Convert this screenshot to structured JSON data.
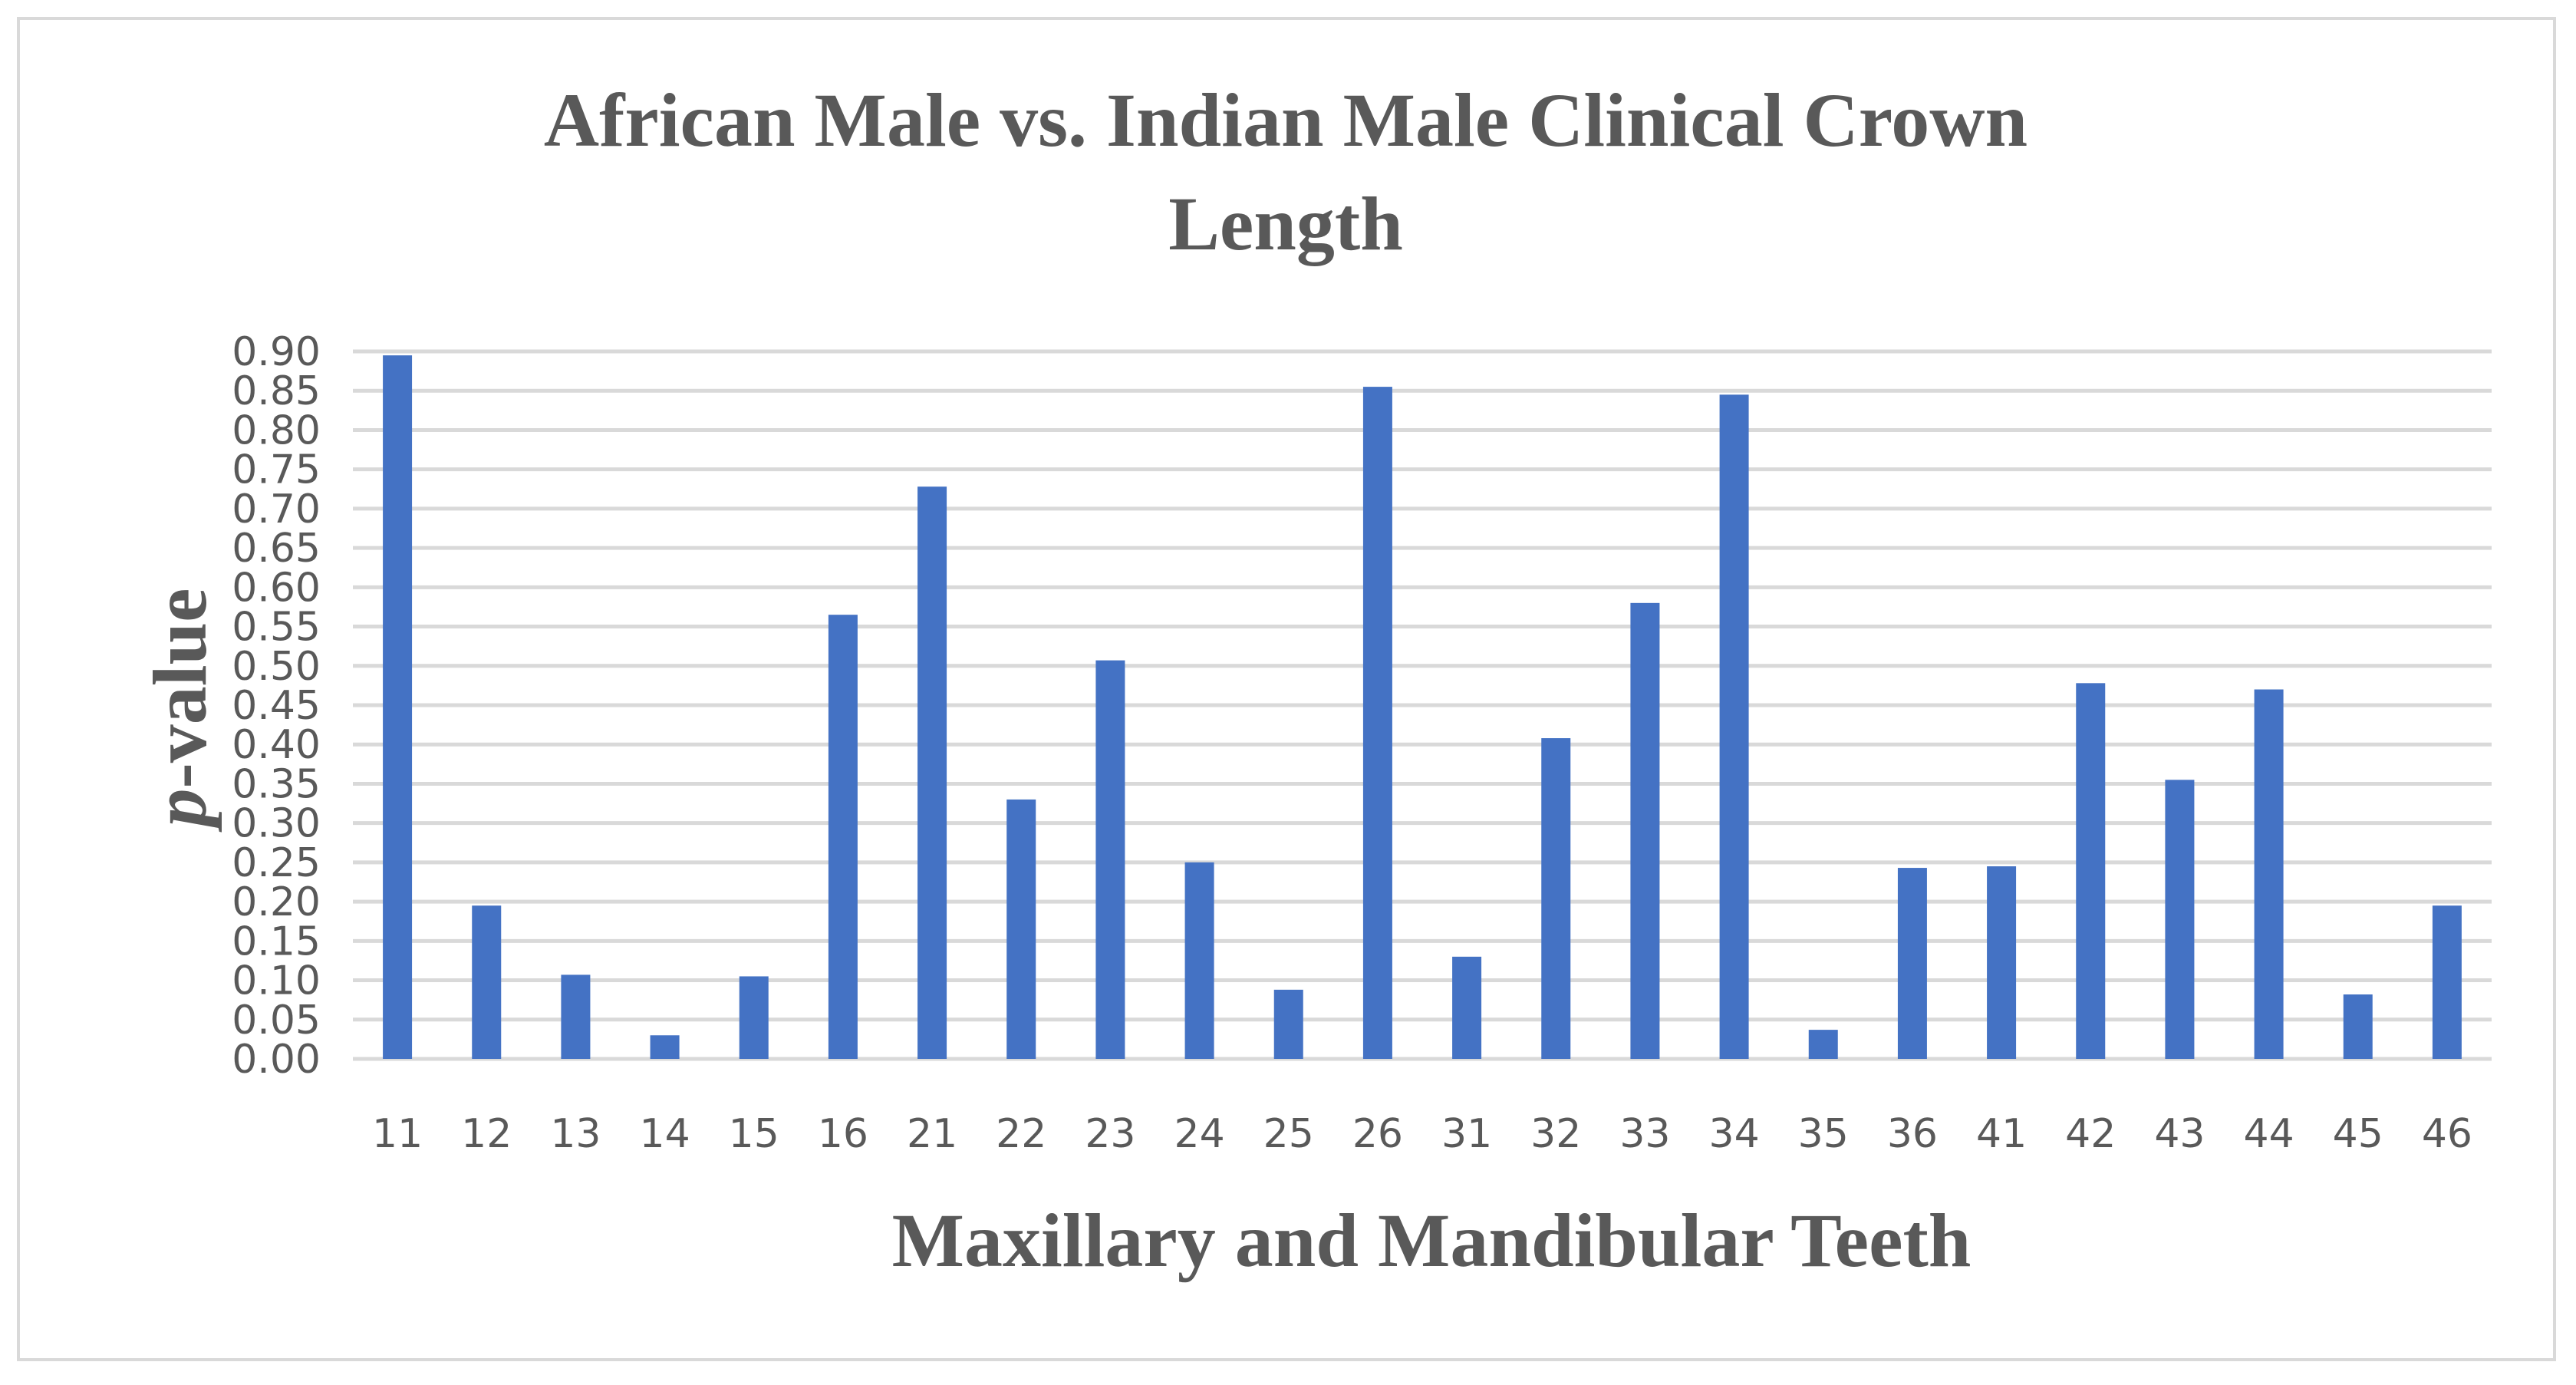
{
  "chart_data": {
    "type": "bar",
    "title_lines": [
      "African Male vs. Indian Male Clinical Crown",
      "Length"
    ],
    "xlabel": "Maxillary and Mandibular Teeth",
    "ylabel_italic": "p",
    "ylabel_rest": "-value",
    "categories": [
      "11",
      "12",
      "13",
      "14",
      "15",
      "16",
      "21",
      "22",
      "23",
      "24",
      "25",
      "26",
      "31",
      "32",
      "33",
      "34",
      "35",
      "36",
      "41",
      "42",
      "43",
      "44",
      "45",
      "46"
    ],
    "series": [
      {
        "values": [
          0.895,
          0.195,
          0.107,
          0.03,
          0.105,
          0.565,
          0.728,
          0.33,
          0.507,
          0.25,
          0.088,
          0.855,
          0.13,
          0.408,
          0.58,
          0.845,
          0.037,
          0.243,
          0.245,
          0.478,
          0.355,
          0.47,
          0.082,
          0.195
        ]
      }
    ],
    "ylim": [
      0,
      0.9
    ],
    "ytick_step": 0.05,
    "ytick_labels": [
      "0.00",
      "0.05",
      "0.10",
      "0.15",
      "0.20",
      "0.25",
      "0.30",
      "0.35",
      "0.40",
      "0.45",
      "0.50",
      "0.55",
      "0.60",
      "0.65",
      "0.70",
      "0.75",
      "0.80",
      "0.85",
      "0.90"
    ],
    "grid": true,
    "legend": "none",
    "bar_color": "#4472c4",
    "grid_color": "#d9d9d9"
  }
}
